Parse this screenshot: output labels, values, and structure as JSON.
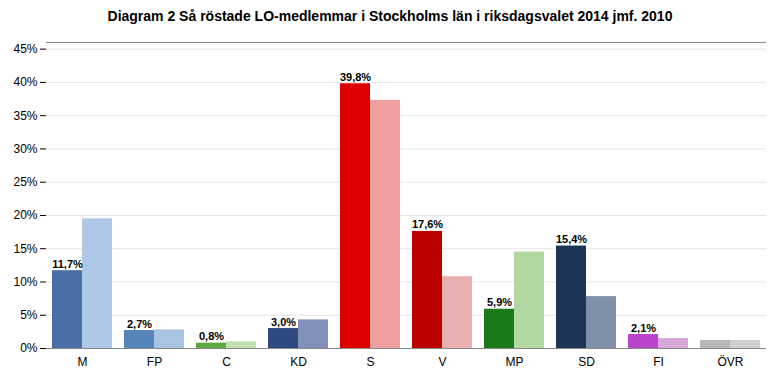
{
  "chart_data": {
    "type": "bar",
    "title": "Diagram 2 Så röstade LO-medlemmar i Stockholms län i riksdagsvalet 2014 jmf. 2010",
    "categories": [
      "M",
      "FP",
      "C",
      "KD",
      "S",
      "V",
      "MP",
      "SD",
      "FI",
      "ÖVR"
    ],
    "series": [
      {
        "values": [
          11.7,
          2.7,
          0.8,
          3.0,
          39.8,
          17.6,
          5.9,
          15.4,
          2.1,
          1.2
        ],
        "colors": [
          "#4a6fa5",
          "#5585bb",
          "#5aaa40",
          "#2d4a80",
          "#dd0000",
          "#bb0000",
          "#1a7a1a",
          "#1c3557",
          "#bb44cc",
          "#b8b8b8"
        ],
        "data_labels": true,
        "value_labels": [
          "11,7%",
          "2,7%",
          "0,8%",
          "3,0%",
          "39,8%",
          "17,6%",
          "5,9%",
          "15,4%",
          "2,1%",
          null
        ]
      },
      {
        "values": [
          19.5,
          2.8,
          1.0,
          4.3,
          37.3,
          10.8,
          14.5,
          7.8,
          1.5,
          1.2
        ],
        "colors": [
          "#b0c8e8",
          "#a8c4e0",
          "#c0e0b0",
          "#8090b8",
          "#f0a0a0",
          "#e8b0b0",
          "#b0d8a0",
          "#8090a8",
          "#d8a8d8",
          "#d0d0d0"
        ]
      }
    ],
    "ylim": [
      0,
      46
    ],
    "yticks": [
      {
        "value": 0,
        "label": "0%"
      },
      {
        "value": 5,
        "label": "5%"
      },
      {
        "value": 10,
        "label": "10%"
      },
      {
        "value": 15,
        "label": "15%"
      },
      {
        "value": 20,
        "label": "20%"
      },
      {
        "value": 25,
        "label": "25%"
      },
      {
        "value": 30,
        "label": "30%"
      },
      {
        "value": 35,
        "label": "35%"
      },
      {
        "value": 40,
        "label": "40%"
      },
      {
        "value": 45,
        "label": "45%"
      }
    ],
    "grid": true
  }
}
